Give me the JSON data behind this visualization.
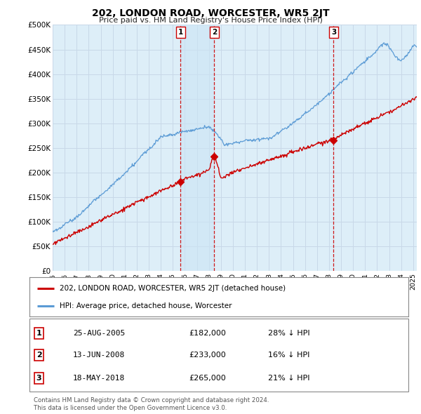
{
  "title": "202, LONDON ROAD, WORCESTER, WR5 2JT",
  "subtitle": "Price paid vs. HM Land Registry's House Price Index (HPI)",
  "background_color": "#ffffff",
  "plot_bg_color": "#ddeef8",
  "grid_color": "#c8d8e8",
  "shade_color": "#cce0f0",
  "ylim": [
    0,
    500000
  ],
  "yticks": [
    0,
    50000,
    100000,
    150000,
    200000,
    250000,
    300000,
    350000,
    400000,
    450000,
    500000
  ],
  "ytick_labels": [
    "£0",
    "£50K",
    "£100K",
    "£150K",
    "£200K",
    "£250K",
    "£300K",
    "£350K",
    "£400K",
    "£450K",
    "£500K"
  ],
  "xlim_start": 1995.0,
  "xlim_end": 2025.3,
  "transactions": [
    {
      "label": "1",
      "date_x": 2005.65,
      "price": 182000,
      "pct": "28% ↓ HPI",
      "date_str": "25-AUG-2005",
      "price_str": "£182,000"
    },
    {
      "label": "2",
      "date_x": 2008.45,
      "price": 233000,
      "pct": "16% ↓ HPI",
      "date_str": "13-JUN-2008",
      "price_str": "£233,000"
    },
    {
      "label": "3",
      "date_x": 2018.38,
      "price": 265000,
      "pct": "21% ↓ HPI",
      "date_str": "18-MAY-2018",
      "price_str": "£265,000"
    }
  ],
  "hpi_color": "#5b9bd5",
  "price_color": "#cc0000",
  "dashed_color": "#cc0000",
  "legend_hpi_label": "HPI: Average price, detached house, Worcester",
  "legend_price_label": "202, LONDON ROAD, WORCESTER, WR5 2JT (detached house)",
  "footnote1": "Contains HM Land Registry data © Crown copyright and database right 2024.",
  "footnote2": "This data is licensed under the Open Government Licence v3.0."
}
